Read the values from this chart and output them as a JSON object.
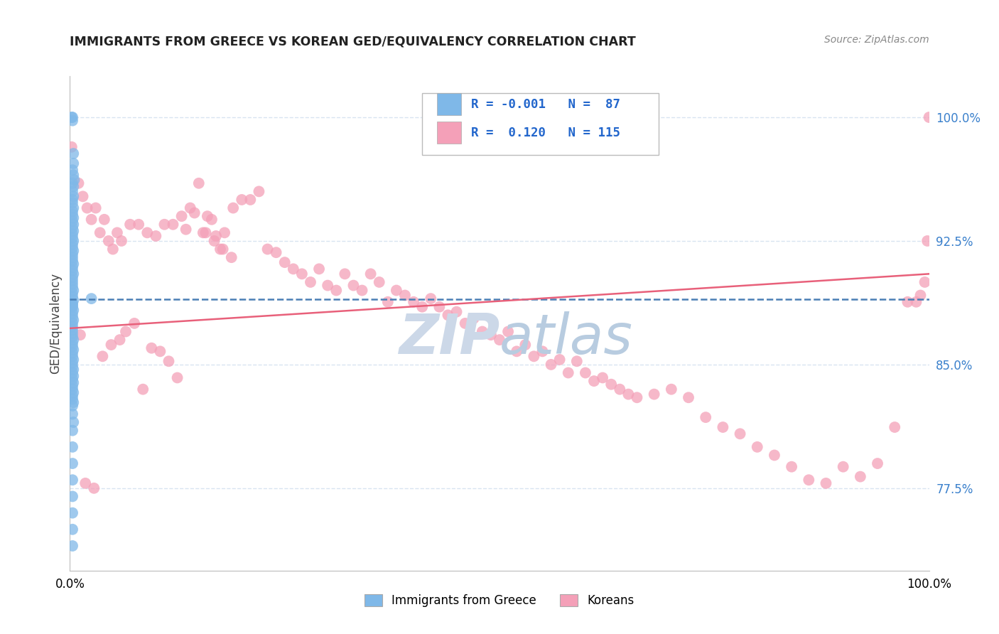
{
  "title": "IMMIGRANTS FROM GREECE VS KOREAN GED/EQUIVALENCY CORRELATION CHART",
  "source": "Source: ZipAtlas.com",
  "ylabel": "GED/Equivalency",
  "xlim": [
    0.0,
    1.0
  ],
  "ylim": [
    0.725,
    1.025
  ],
  "yticks": [
    0.775,
    0.85,
    0.925,
    1.0
  ],
  "ytick_labels": [
    "77.5%",
    "85.0%",
    "92.5%",
    "100.0%"
  ],
  "xticks": [
    0.0,
    0.1,
    0.2,
    0.3,
    0.4,
    0.5,
    0.6,
    0.7,
    0.8,
    0.9,
    1.0
  ],
  "xtick_labels": [
    "0.0%",
    "",
    "",
    "",
    "",
    "",
    "",
    "",
    "",
    "",
    "100.0%"
  ],
  "blue_R": -0.001,
  "blue_N": 87,
  "pink_R": 0.12,
  "pink_N": 115,
  "blue_color": "#7fb8e8",
  "pink_color": "#f4a0b8",
  "blue_line_color": "#4a7fb5",
  "pink_line_color": "#e8607a",
  "grid_color": "#d8e4f0",
  "background_color": "#ffffff",
  "watermark_color": "#ccd8e8",
  "legend_blue_label": "Immigrants from Greece",
  "legend_pink_label": "Koreans",
  "blue_scatter_x": [
    0.002,
    0.003,
    0.003,
    0.004,
    0.004,
    0.003,
    0.004,
    0.005,
    0.003,
    0.004,
    0.003,
    0.004,
    0.003,
    0.003,
    0.004,
    0.003,
    0.003,
    0.004,
    0.003,
    0.004,
    0.003,
    0.004,
    0.003,
    0.003,
    0.004,
    0.003,
    0.003,
    0.004,
    0.003,
    0.003,
    0.003,
    0.004,
    0.003,
    0.003,
    0.004,
    0.003,
    0.003,
    0.003,
    0.003,
    0.004,
    0.003,
    0.003,
    0.004,
    0.003,
    0.003,
    0.004,
    0.003,
    0.003,
    0.004,
    0.003,
    0.003,
    0.003,
    0.003,
    0.003,
    0.004,
    0.003,
    0.003,
    0.004,
    0.003,
    0.003,
    0.004,
    0.003,
    0.003,
    0.004,
    0.003,
    0.004,
    0.003,
    0.004,
    0.003,
    0.003,
    0.004,
    0.003,
    0.003,
    0.004,
    0.003,
    0.003,
    0.004,
    0.003,
    0.003,
    0.003,
    0.003,
    0.003,
    0.003,
    0.003,
    0.003,
    0.025,
    0.003
  ],
  "blue_scatter_y": [
    1.0,
    1.0,
    0.998,
    0.978,
    0.972,
    0.968,
    0.965,
    0.962,
    0.96,
    0.958,
    0.955,
    0.952,
    0.95,
    0.948,
    0.945,
    0.943,
    0.941,
    0.939,
    0.937,
    0.935,
    0.933,
    0.931,
    0.929,
    0.927,
    0.925,
    0.923,
    0.921,
    0.919,
    0.917,
    0.915,
    0.913,
    0.911,
    0.909,
    0.907,
    0.905,
    0.903,
    0.901,
    0.899,
    0.897,
    0.895,
    0.893,
    0.891,
    0.889,
    0.887,
    0.885,
    0.883,
    0.881,
    0.879,
    0.877,
    0.875,
    0.873,
    0.871,
    0.869,
    0.867,
    0.865,
    0.863,
    0.861,
    0.859,
    0.857,
    0.855,
    0.853,
    0.851,
    0.849,
    0.847,
    0.845,
    0.843,
    0.841,
    0.839,
    0.837,
    0.835,
    0.833,
    0.831,
    0.829,
    0.827,
    0.825,
    0.82,
    0.815,
    0.81,
    0.8,
    0.79,
    0.78,
    0.77,
    0.76,
    0.75,
    0.74,
    0.89,
    0.886
  ],
  "pink_scatter_x": [
    0.002,
    0.01,
    0.015,
    0.02,
    0.025,
    0.03,
    0.035,
    0.04,
    0.045,
    0.05,
    0.055,
    0.06,
    0.07,
    0.08,
    0.09,
    0.1,
    0.11,
    0.12,
    0.13,
    0.14,
    0.15,
    0.155,
    0.16,
    0.165,
    0.17,
    0.175,
    0.18,
    0.19,
    0.2,
    0.21,
    0.22,
    0.23,
    0.24,
    0.25,
    0.26,
    0.27,
    0.28,
    0.29,
    0.3,
    0.31,
    0.32,
    0.33,
    0.34,
    0.35,
    0.36,
    0.37,
    0.38,
    0.39,
    0.4,
    0.41,
    0.42,
    0.43,
    0.44,
    0.45,
    0.46,
    0.47,
    0.48,
    0.49,
    0.5,
    0.51,
    0.52,
    0.53,
    0.54,
    0.55,
    0.56,
    0.57,
    0.58,
    0.59,
    0.6,
    0.61,
    0.62,
    0.63,
    0.64,
    0.65,
    0.66,
    0.68,
    0.7,
    0.72,
    0.74,
    0.76,
    0.78,
    0.8,
    0.82,
    0.84,
    0.86,
    0.88,
    0.9,
    0.92,
    0.94,
    0.96,
    0.975,
    0.985,
    0.99,
    0.995,
    0.998,
    1.0,
    0.012,
    0.018,
    0.028,
    0.038,
    0.048,
    0.058,
    0.065,
    0.075,
    0.085,
    0.095,
    0.105,
    0.115,
    0.125,
    0.135,
    0.145,
    0.158,
    0.168,
    0.178,
    0.188
  ],
  "pink_scatter_y": [
    0.982,
    0.96,
    0.952,
    0.945,
    0.938,
    0.945,
    0.93,
    0.938,
    0.925,
    0.92,
    0.93,
    0.925,
    0.935,
    0.935,
    0.93,
    0.928,
    0.935,
    0.935,
    0.94,
    0.945,
    0.96,
    0.93,
    0.94,
    0.938,
    0.928,
    0.92,
    0.93,
    0.945,
    0.95,
    0.95,
    0.955,
    0.92,
    0.918,
    0.912,
    0.908,
    0.905,
    0.9,
    0.908,
    0.898,
    0.895,
    0.905,
    0.898,
    0.895,
    0.905,
    0.9,
    0.888,
    0.895,
    0.892,
    0.888,
    0.885,
    0.89,
    0.885,
    0.88,
    0.882,
    0.875,
    0.878,
    0.87,
    0.868,
    0.865,
    0.87,
    0.858,
    0.862,
    0.855,
    0.858,
    0.85,
    0.853,
    0.845,
    0.852,
    0.845,
    0.84,
    0.842,
    0.838,
    0.835,
    0.832,
    0.83,
    0.832,
    0.835,
    0.83,
    0.818,
    0.812,
    0.808,
    0.8,
    0.795,
    0.788,
    0.78,
    0.778,
    0.788,
    0.782,
    0.79,
    0.812,
    0.888,
    0.888,
    0.892,
    0.9,
    0.925,
    1.0,
    0.868,
    0.778,
    0.775,
    0.855,
    0.862,
    0.865,
    0.87,
    0.875,
    0.835,
    0.86,
    0.858,
    0.852,
    0.842,
    0.932,
    0.942,
    0.93,
    0.925,
    0.92,
    0.915
  ],
  "blue_trend_x": [
    0.0,
    1.0
  ],
  "blue_trend_y_start": 0.8895,
  "blue_trend_y_end": 0.8895,
  "pink_trend_x": [
    0.0,
    1.0
  ],
  "pink_trend_y_start": 0.872,
  "pink_trend_y_end": 0.905
}
